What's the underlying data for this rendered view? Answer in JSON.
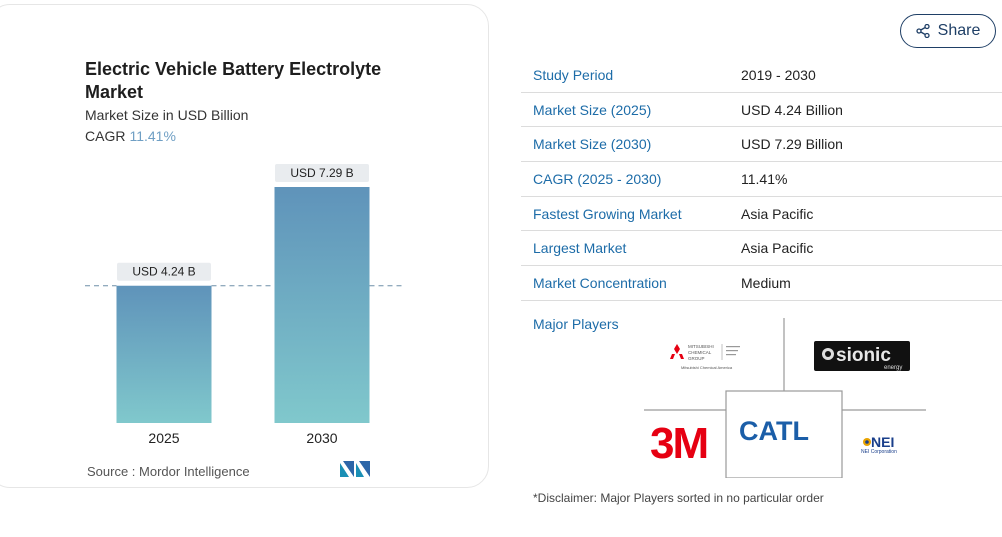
{
  "chart_data": {
    "type": "bar",
    "title": "Electric Vehicle Battery Electrolyte Market",
    "subtitle": "Market Size in USD Billion",
    "cagr_label": "CAGR",
    "cagr_value": "11.41%",
    "categories": [
      "2025",
      "2030"
    ],
    "values": [
      4.24,
      7.29
    ],
    "value_labels": [
      "USD 4.24 B",
      "USD 7.29 B"
    ],
    "xlabel": "",
    "ylabel": "",
    "ylim": [
      0,
      7.29
    ],
    "grid": false,
    "reference_line": "dashed line at 2025 value",
    "colors": {
      "bar_top": "#5f93ba",
      "bar_bottom": "#80c8cc",
      "label_bg": "#e9ecef",
      "dash": "#6f8fa8"
    }
  },
  "source_text": "Source :  Mordor Intelligence",
  "share": {
    "label": "Share"
  },
  "stats": [
    {
      "label": "Study Period",
      "value": "2019 - 2030"
    },
    {
      "label": "Market Size (2025)",
      "value": "USD 4.24 Billion"
    },
    {
      "label": "Market Size (2030)",
      "value": "USD 7.29 Billion"
    },
    {
      "label": "CAGR (2025 - 2030)",
      "value": "11.41%"
    },
    {
      "label": "Fastest Growing Market",
      "value": "Asia Pacific"
    },
    {
      "label": "Largest Market",
      "value": "Asia Pacific"
    },
    {
      "label": "Market Concentration",
      "value": "Medium"
    }
  ],
  "players": {
    "label": "Major Players",
    "logos": [
      "Mitsubishi Chemical Group",
      "sionic energy",
      "3M",
      "CATL",
      "NEI Corporation"
    ],
    "logo_text": {
      "mitsubishi_line1": "MITSUBISHI",
      "mitsubishi_line2": "CHEMICAL",
      "mitsubishi_line3": "GROUP",
      "mitsubishi_sub": "Mitsubishi Chemical America",
      "sionic": "sionic",
      "sionic_sub": "energy",
      "threem": "3M",
      "catl": "CATL",
      "nei": "NEI",
      "nei_sub": "NEI Corporation"
    }
  },
  "disclaimer": "*Disclaimer: Major Players sorted in no particular order",
  "icons": {
    "share": "share-icon",
    "source_logo": "mordor-intelligence-logo"
  }
}
